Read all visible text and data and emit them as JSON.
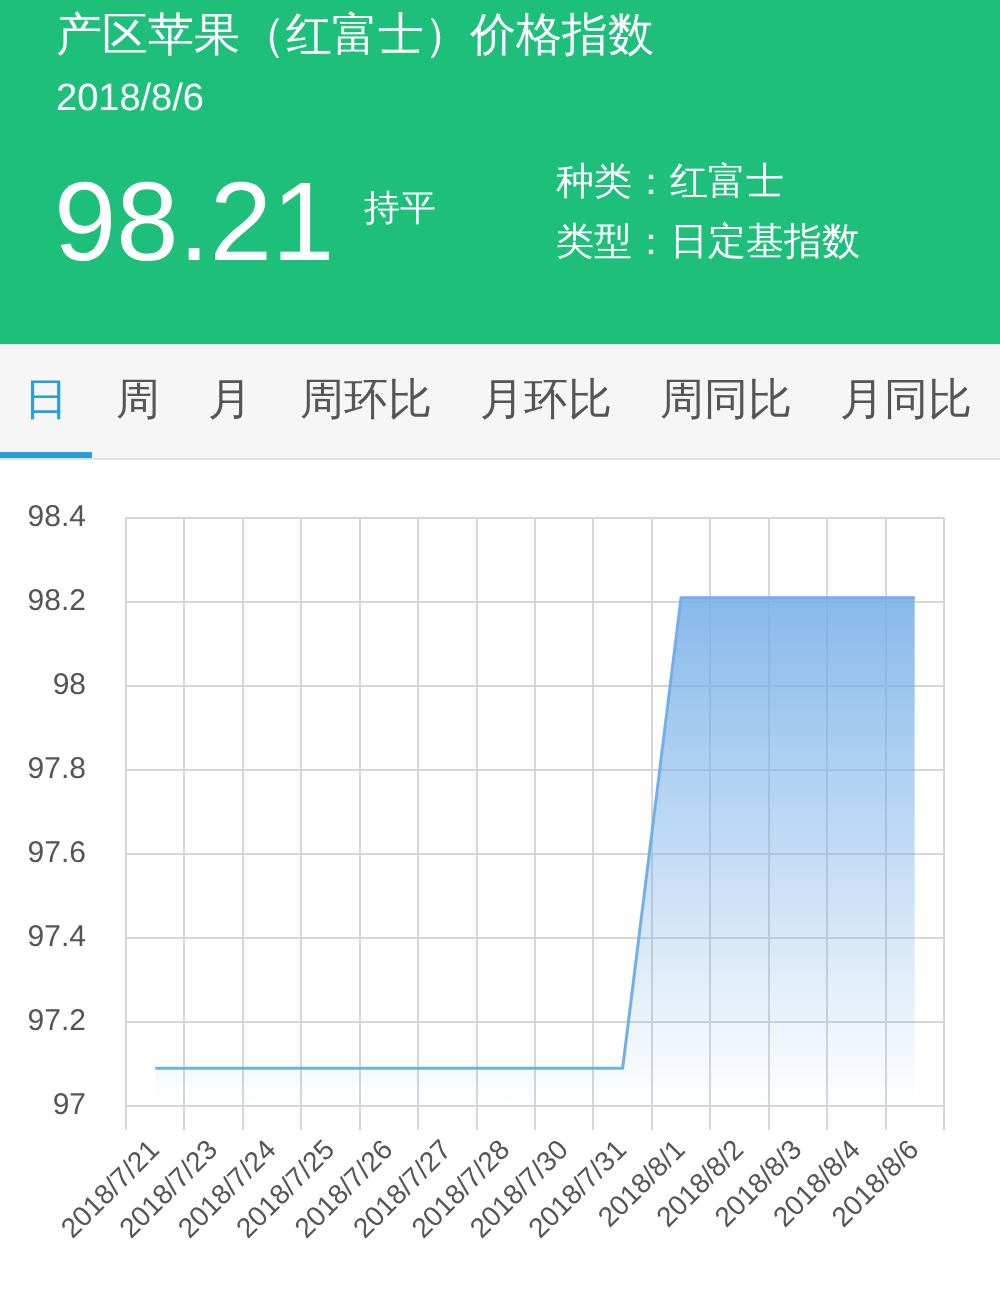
{
  "chart_data": {
    "type": "area",
    "title": "产区苹果（红富士）价格指数",
    "subtitle": "2018/8/6",
    "annotations": [
      "98.21",
      "持平",
      "种类：红富士",
      "类型：日定基指数",
      "日",
      "周",
      "月",
      "周环比",
      "月环比",
      "周同比",
      "月同比"
    ],
    "categories": [
      "2018/7/21",
      "2018/7/23",
      "2018/7/24",
      "2018/7/25",
      "2018/7/26",
      "2018/7/27",
      "2018/7/28",
      "2018/7/30",
      "2018/7/31",
      "2018/8/1",
      "2018/8/2",
      "2018/8/3",
      "2018/8/4",
      "2018/8/6"
    ],
    "values": [
      97.09,
      97.09,
      97.09,
      97.09,
      97.09,
      97.09,
      97.09,
      97.09,
      97.09,
      98.21,
      98.21,
      98.21,
      98.21,
      98.21
    ],
    "color": "#74aee8",
    "ylim": [
      97,
      98.4
    ],
    "yticks": [
      97,
      97.2,
      97.4,
      97.6,
      97.8,
      98,
      98.2,
      98.4
    ],
    "grid": true,
    "legend": false
  }
}
